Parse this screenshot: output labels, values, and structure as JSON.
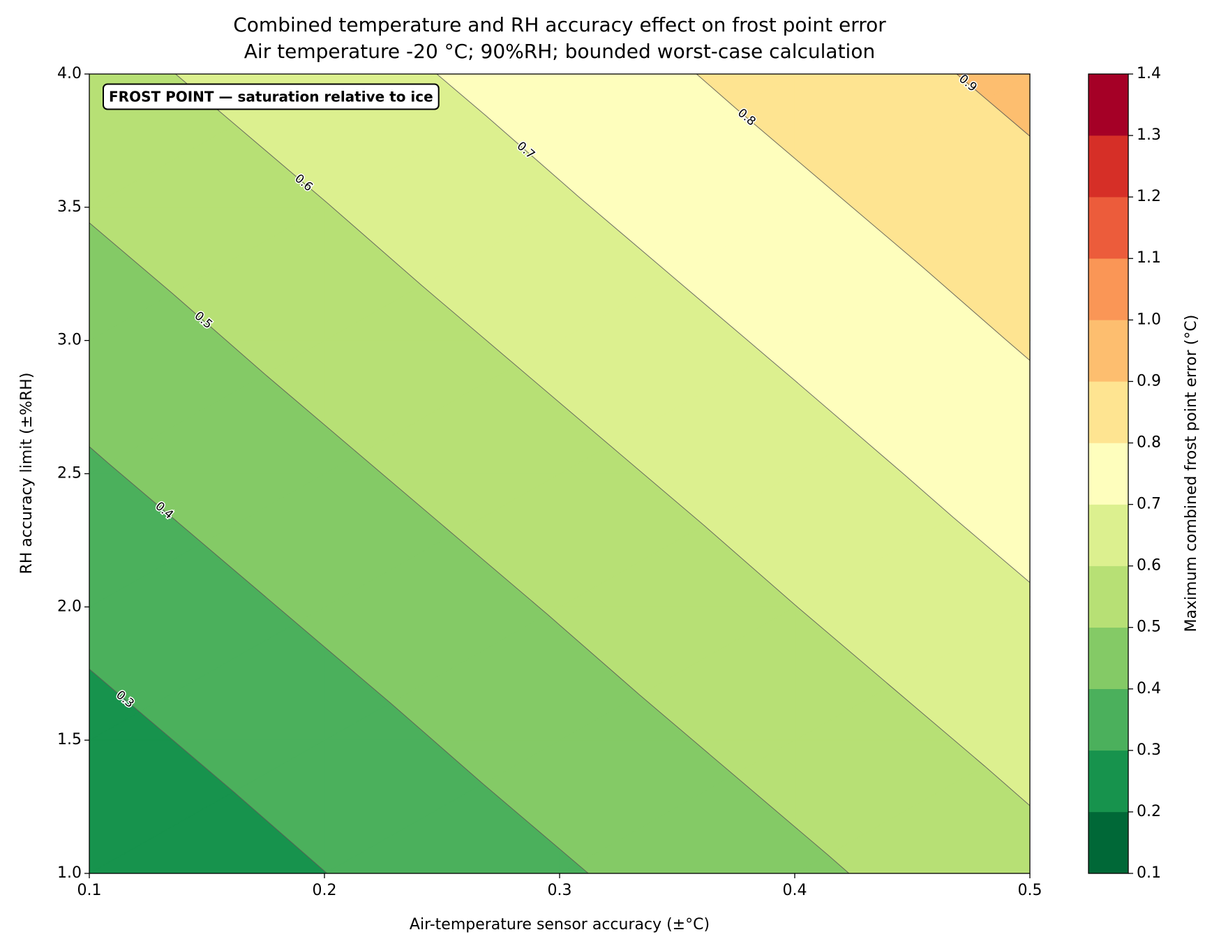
{
  "chart_data": {
    "type": "contourf",
    "title": "Combined temperature and RH accuracy effect on frost point error",
    "subtitle": "Air temperature -20 °C; 90%RH; bounded worst-case calculation",
    "x_label": "Air-temperature sensor accuracy (±°C)",
    "y_label": "RH accuracy limit (±%RH)",
    "colorbar_label": "Maximum combined frost point error (°C)",
    "annotation": "FROST POINT — saturation relative to ice",
    "x": [
      0.1,
      0.2,
      0.3,
      0.4,
      0.5
    ],
    "y": [
      1.0,
      1.5,
      2.0,
      2.5,
      3.0,
      3.5,
      4.0
    ],
    "z": [
      [
        0.208,
        0.299,
        0.389,
        0.479,
        0.57
      ],
      [
        0.268,
        0.358,
        0.449,
        0.539,
        0.629
      ],
      [
        0.328,
        0.418,
        0.508,
        0.599,
        0.689
      ],
      [
        0.388,
        0.478,
        0.568,
        0.658,
        0.749
      ],
      [
        0.447,
        0.538,
        0.628,
        0.718,
        0.809
      ],
      [
        0.507,
        0.597,
        0.688,
        0.778,
        0.868
      ],
      [
        0.567,
        0.657,
        0.747,
        0.838,
        0.928
      ]
    ],
    "levels": [
      0.1,
      0.2,
      0.3,
      0.4,
      0.5,
      0.6,
      0.7,
      0.8,
      0.9,
      1.0,
      1.1,
      1.2,
      1.3,
      1.4
    ],
    "colors": [
      "#006837",
      "#17934d",
      "#4bb05c",
      "#84ca66",
      "#b7e075",
      "#dcf08f",
      "#fefebd",
      "#fee491",
      "#fdbe6f",
      "#fa9656",
      "#ec5c3b",
      "#d62f27",
      "#a50026"
    ],
    "line_levels": [
      0.3,
      0.4,
      0.5,
      0.6,
      0.7,
      0.8,
      0.9
    ],
    "xlim": [
      0.1,
      0.5
    ],
    "ylim": [
      1.0,
      4.0
    ],
    "xticks": [
      0.1,
      0.2,
      0.3,
      0.4,
      0.5
    ],
    "yticks": [
      {
        "value": 1,
        "label": "1.0"
      },
      1.5,
      {
        "value": 2,
        "label": "2.0"
      },
      2.5,
      {
        "value": 3,
        "label": "3.0"
      },
      3.5,
      {
        "value": 4,
        "label": "4.0"
      }
    ],
    "colorbar_ticks": [
      0.1,
      0.2,
      0.3,
      0.4,
      0.5,
      0.6,
      0.7,
      0.8,
      0.9,
      {
        "value": 1,
        "label": "1.0"
      },
      1.1,
      1.2,
      1.3,
      1.4
    ]
  }
}
